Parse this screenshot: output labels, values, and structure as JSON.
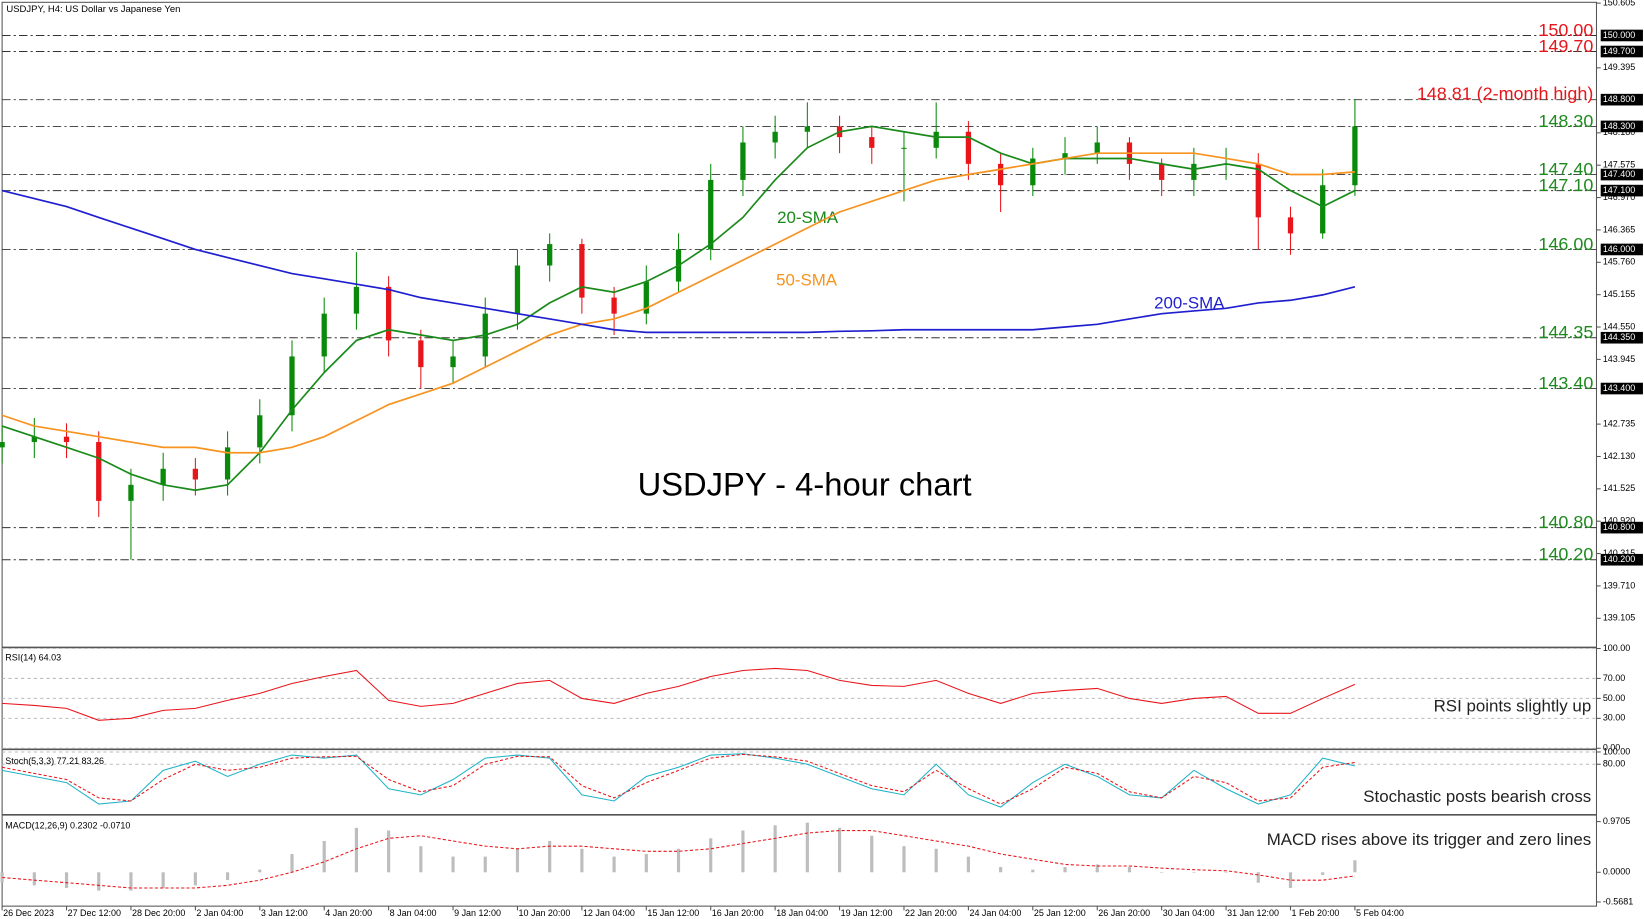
{
  "chart_data": [
    {
      "type": "candlestick",
      "title": "USDJPY - 4-hour chart",
      "subtitle": "USDJPY, H4:  US Dollar vs Japanese Yen",
      "x": [
        0,
        4,
        8,
        12,
        16,
        20,
        24,
        28,
        32,
        36,
        40,
        44,
        48,
        52,
        56,
        60,
        64,
        68,
        72,
        76,
        80,
        84,
        88,
        92,
        96,
        100,
        104,
        108,
        112,
        116,
        120,
        124,
        128,
        132,
        136,
        140,
        144,
        148,
        152,
        156,
        160,
        164,
        168
      ],
      "xlim": [
        0,
        198
      ],
      "xticks": [
        {
          "value": 0,
          "label": "26 Dec 2023"
        },
        {
          "value": 8,
          "label": "27 Dec 12:00"
        },
        {
          "value": 16,
          "label": "28 Dec 20:00"
        },
        {
          "value": 24,
          "label": "2 Jan 04:00"
        },
        {
          "value": 32,
          "label": "3 Jan 12:00"
        },
        {
          "value": 40,
          "label": "4 Jan 20:00"
        },
        {
          "value": 48,
          "label": "8 Jan 04:00"
        },
        {
          "value": 56,
          "label": "9 Jan 12:00"
        },
        {
          "value": 64,
          "label": "10 Jan 20:00"
        },
        {
          "value": 72,
          "label": "12 Jan 04:00"
        },
        {
          "value": 80,
          "label": "15 Jan 12:00"
        },
        {
          "value": 88,
          "label": "16 Jan 20:00"
        },
        {
          "value": 96,
          "label": "18 Jan 04:00"
        },
        {
          "value": 104,
          "label": "19 Jan 12:00"
        },
        {
          "value": 112,
          "label": "22 Jan 20:00"
        },
        {
          "value": 120,
          "label": "24 Jan 04:00"
        },
        {
          "value": 128,
          "label": "25 Jan 12:00"
        },
        {
          "value": 136,
          "label": "26 Jan 20:00"
        },
        {
          "value": 144,
          "label": "30 Jan 04:00"
        },
        {
          "value": 152,
          "label": "31 Jan 12:00"
        },
        {
          "value": 160,
          "label": "1 Feb 20:00"
        },
        {
          "value": 168,
          "label": "5 Feb 04:00"
        }
      ],
      "open": [
        142.3,
        142.4,
        142.5,
        142.4,
        141.3,
        141.6,
        141.9,
        141.7,
        142.3,
        142.9,
        144.0,
        144.8,
        145.3,
        144.3,
        143.8,
        144.0,
        144.8,
        145.7,
        146.1,
        145.1,
        144.8,
        145.4,
        146.0,
        147.3,
        148.0,
        148.2,
        148.3,
        148.1,
        147.9,
        147.9,
        148.2,
        147.6,
        147.2,
        147.7,
        147.8,
        148.0,
        147.6,
        147.3,
        147.6,
        147.6,
        146.6,
        146.3,
        147.2
      ],
      "high": [
        142.7,
        142.85,
        142.75,
        142.6,
        141.9,
        142.2,
        142.1,
        142.6,
        143.2,
        144.3,
        145.1,
        145.95,
        145.5,
        144.5,
        144.3,
        145.1,
        146.0,
        146.3,
        146.2,
        145.3,
        145.7,
        146.3,
        147.6,
        148.3,
        148.5,
        148.75,
        148.5,
        148.3,
        148.2,
        148.75,
        148.4,
        147.8,
        147.9,
        148.1,
        148.3,
        148.1,
        147.7,
        147.9,
        147.9,
        147.8,
        146.8,
        147.5,
        148.81
      ],
      "low": [
        142.0,
        142.1,
        142.1,
        141.0,
        140.2,
        141.3,
        141.4,
        141.4,
        142.0,
        142.6,
        143.7,
        144.5,
        144.0,
        143.4,
        143.5,
        143.8,
        144.5,
        145.4,
        144.8,
        144.4,
        144.6,
        145.2,
        145.8,
        147.0,
        147.7,
        147.9,
        147.8,
        147.6,
        146.9,
        147.7,
        147.3,
        146.7,
        147.0,
        147.4,
        147.6,
        147.3,
        147.0,
        147.0,
        147.3,
        146.0,
        145.9,
        146.2,
        147.0
      ],
      "close": [
        142.4,
        142.5,
        142.4,
        141.3,
        141.6,
        141.9,
        141.7,
        142.3,
        142.9,
        144.0,
        144.8,
        145.3,
        144.3,
        143.8,
        144.0,
        144.8,
        145.7,
        146.1,
        145.1,
        144.8,
        145.4,
        146.0,
        147.3,
        148.0,
        148.2,
        148.3,
        148.1,
        147.9,
        147.9,
        148.2,
        147.6,
        147.2,
        147.7,
        147.8,
        148.0,
        147.6,
        147.3,
        147.6,
        147.6,
        146.6,
        146.3,
        147.2,
        148.3
      ],
      "up_color": "#0a8a0a",
      "down_color": "#e8151b",
      "series": [
        {
          "name": "20-SMA",
          "color": "#1a8a1a",
          "values": [
            142.7,
            142.5,
            142.3,
            142.1,
            141.8,
            141.6,
            141.5,
            141.6,
            142.2,
            143.0,
            143.7,
            144.3,
            144.5,
            144.4,
            144.3,
            144.4,
            144.6,
            145.0,
            145.3,
            145.2,
            145.4,
            145.7,
            146.1,
            146.6,
            147.3,
            147.9,
            148.2,
            148.3,
            148.2,
            148.1,
            148.1,
            147.8,
            147.6,
            147.7,
            147.7,
            147.7,
            147.6,
            147.5,
            147.6,
            147.5,
            147.1,
            146.8,
            147.1
          ]
        },
        {
          "name": "50-SMA",
          "color": "#f7931e",
          "values": [
            142.9,
            142.7,
            142.6,
            142.5,
            142.4,
            142.3,
            142.3,
            142.2,
            142.2,
            142.3,
            142.5,
            142.8,
            143.1,
            143.3,
            143.5,
            143.8,
            144.1,
            144.4,
            144.6,
            144.7,
            144.9,
            145.2,
            145.5,
            145.8,
            146.1,
            146.4,
            146.7,
            146.9,
            147.1,
            147.3,
            147.4,
            147.5,
            147.6,
            147.7,
            147.8,
            147.8,
            147.8,
            147.8,
            147.7,
            147.6,
            147.4,
            147.4,
            147.45
          ]
        },
        {
          "name": "200-SMA",
          "color": "#1f1fcf",
          "values": [
            147.1,
            146.95,
            146.8,
            146.6,
            146.4,
            146.2,
            146.0,
            145.85,
            145.7,
            145.55,
            145.45,
            145.35,
            145.25,
            145.1,
            145.0,
            144.9,
            144.8,
            144.7,
            144.6,
            144.5,
            144.45,
            144.45,
            144.45,
            144.45,
            144.45,
            144.45,
            144.47,
            144.48,
            144.5,
            144.5,
            144.5,
            144.5,
            144.5,
            144.55,
            144.6,
            144.7,
            144.8,
            144.85,
            144.9,
            145.0,
            145.05,
            145.15,
            145.3
          ]
        }
      ],
      "ylim": [
        138.58,
        150.62
      ],
      "yticks": [
        150.605,
        149.395,
        {
          "value": 148.18,
          "label": "148.180"
        },
        147.575,
        {
          "value": 146.97,
          "label": "146.970"
        },
        146.365,
        {
          "value": 145.76,
          "label": "145.760"
        },
        145.155,
        {
          "value": 144.55,
          "label": "144.550"
        },
        143.945,
        142.735,
        {
          "value": 142.13,
          "label": "142.130"
        },
        141.525,
        {
          "value": 140.92,
          "label": "140.920"
        },
        140.315,
        {
          "value": 139.71,
          "label": "139.710"
        },
        139.105
      ],
      "level_tags": [
        {
          "value": 150,
          "label": "150.000"
        },
        {
          "value": 149.7,
          "label": "149.700"
        },
        {
          "value": 148.8,
          "label": "148.800"
        },
        {
          "value": 148.3,
          "label": "148.300"
        },
        {
          "value": 147.4,
          "label": "147.400"
        },
        {
          "value": 147.1,
          "label": "147.100"
        },
        {
          "value": 146,
          "label": "146.000"
        },
        {
          "value": 144.35,
          "label": "144.350"
        },
        {
          "value": 143.4,
          "label": "143.400"
        },
        {
          "value": 140.8,
          "label": "140.800"
        },
        {
          "value": 140.2,
          "label": "140.200"
        }
      ],
      "levels": [
        {
          "value": 150,
          "label": "150.00",
          "color": "#e8151b"
        },
        {
          "value": 149.7,
          "label": "149.70",
          "color": "#e8151b"
        },
        {
          "value": 148.81,
          "label": "148.81 (2-month high)",
          "color": "#e8151b"
        },
        {
          "value": 148.3,
          "label": "148.30",
          "color": "#1f8a1f"
        },
        {
          "value": 147.4,
          "label": "147.40",
          "color": "#1f8a1f"
        },
        {
          "value": 147.1,
          "label": "147.10",
          "color": "#1f8a1f"
        },
        {
          "value": 146,
          "label": "146.00",
          "color": "#1f8a1f"
        },
        {
          "value": 144.35,
          "label": "144.35",
          "color": "#1f8a1f"
        },
        {
          "value": 143.4,
          "label": "143.40",
          "color": "#1f8a1f"
        },
        {
          "value": 140.8,
          "label": "140.80",
          "color": "#1f8a1f"
        },
        {
          "value": 140.2,
          "label": "140.20",
          "color": "#1f8a1f"
        }
      ]
    },
    {
      "type": "line",
      "title": "RSI(14) 64.03",
      "annotation": "RSI points slightly up",
      "series": [
        {
          "color": "#e8151b",
          "values": [
            45,
            43,
            40,
            28,
            30,
            38,
            40,
            48,
            55,
            65,
            72,
            78,
            48,
            42,
            45,
            55,
            65,
            68,
            50,
            45,
            55,
            62,
            72,
            78,
            80,
            78,
            68,
            63,
            62,
            68,
            55,
            45,
            55,
            58,
            60,
            50,
            45,
            50,
            52,
            35,
            35,
            50,
            64
          ]
        }
      ],
      "ylim": [
        0,
        100
      ],
      "yticks": [
        {
          "value": 100,
          "label": "100.00"
        },
        {
          "value": 70,
          "label": "70.00"
        },
        {
          "value": 50,
          "label": "50.00"
        },
        {
          "value": 30,
          "label": "30.00"
        },
        {
          "value": 0,
          "label": "0.00"
        }
      ]
    },
    {
      "type": "line",
      "title": "Stoch(5,3,3) 77.21 83.26",
      "annotation": "Stochastic posts bearish cross",
      "series": [
        {
          "color": "#1fb3c8",
          "values": [
            70,
            60,
            50,
            15,
            20,
            70,
            85,
            60,
            80,
            95,
            90,
            95,
            40,
            30,
            55,
            90,
            95,
            90,
            30,
            20,
            60,
            75,
            95,
            97,
            90,
            80,
            60,
            40,
            30,
            80,
            30,
            10,
            50,
            80,
            60,
            30,
            25,
            70,
            40,
            15,
            30,
            90,
            77
          ]
        },
        {
          "color": "#e8151b",
          "dash": true,
          "values": [
            75,
            65,
            55,
            25,
            20,
            55,
            80,
            70,
            75,
            90,
            92,
            93,
            55,
            35,
            45,
            80,
            93,
            92,
            45,
            25,
            50,
            70,
            90,
            96,
            92,
            85,
            65,
            45,
            35,
            70,
            40,
            15,
            40,
            75,
            65,
            35,
            25,
            60,
            50,
            20,
            25,
            75,
            83
          ]
        }
      ],
      "ylim": [
        0,
        100
      ],
      "yticks": [
        {
          "value": 100,
          "label": "100.00"
        },
        {
          "value": 80,
          "label": "80.00"
        }
      ]
    },
    {
      "type": "macd",
      "title": "MACD(12,26,9) 0.2302 -0.0710",
      "annotation": "MACD rises above its trigger and zero lines",
      "series": [
        {
          "kind": "bar",
          "color": "#bdbdbd",
          "values": [
            -0.2,
            -0.25,
            -0.3,
            -0.35,
            -0.35,
            -0.3,
            -0.25,
            -0.15,
            0.05,
            0.35,
            0.6,
            0.85,
            0.8,
            0.5,
            0.3,
            0.3,
            0.45,
            0.6,
            0.45,
            0.3,
            0.35,
            0.45,
            0.65,
            0.8,
            0.9,
            0.95,
            0.85,
            0.7,
            0.5,
            0.45,
            0.3,
            0.1,
            0.05,
            0.1,
            0.15,
            0.1,
            0.0,
            0.0,
            0.0,
            -0.2,
            -0.3,
            -0.05,
            0.23
          ]
        },
        {
          "kind": "line",
          "color": "#e8151b",
          "dash": true,
          "values": [
            -0.1,
            -0.15,
            -0.2,
            -0.25,
            -0.3,
            -0.3,
            -0.3,
            -0.25,
            -0.15,
            0.0,
            0.2,
            0.45,
            0.65,
            0.7,
            0.6,
            0.5,
            0.45,
            0.5,
            0.5,
            0.45,
            0.4,
            0.4,
            0.45,
            0.55,
            0.65,
            0.75,
            0.8,
            0.8,
            0.7,
            0.6,
            0.5,
            0.35,
            0.25,
            0.15,
            0.12,
            0.12,
            0.08,
            0.05,
            0.03,
            -0.05,
            -0.15,
            -0.15,
            -0.07
          ]
        }
      ],
      "ylim": [
        -0.648,
        1.07
      ],
      "yticks": [
        0.9705,
        {
          "value": 0,
          "label": "0.0000"
        },
        -0.5681
      ]
    }
  ]
}
